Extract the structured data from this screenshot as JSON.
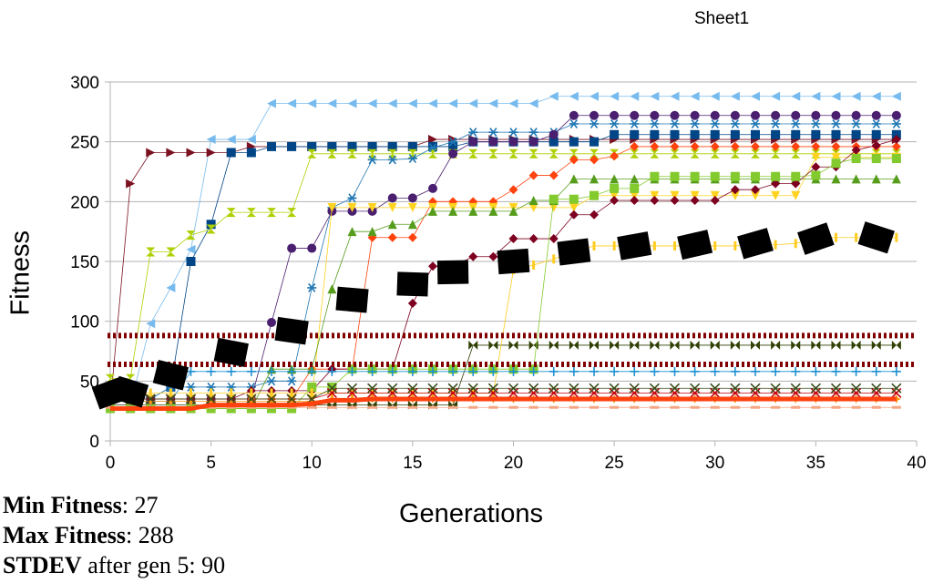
{
  "sheet_title": "Sheet1",
  "stats": [
    {
      "label": "Min Fitness",
      "sep": ": ",
      "value": "27"
    },
    {
      "label": "Max Fitness",
      "sep": ": ",
      "value": "288"
    },
    {
      "label": "STDEV",
      "sep": " after gen 5: ",
      "value": "90"
    }
  ],
  "chart_data": {
    "type": "line",
    "title": "",
    "xlabel": "Generations",
    "ylabel": "Fitness",
    "xlim": [
      0,
      40
    ],
    "ylim": [
      0,
      300
    ],
    "xticks": [
      0,
      5,
      10,
      15,
      20,
      25,
      30,
      35,
      40
    ],
    "yticks": [
      0,
      50,
      100,
      150,
      200,
      250,
      300
    ],
    "grid": "horizontal",
    "legend": "none",
    "x": [
      0,
      1,
      2,
      3,
      4,
      5,
      6,
      7,
      8,
      9,
      10,
      11,
      12,
      13,
      14,
      15,
      16,
      17,
      18,
      19,
      20,
      21,
      22,
      23,
      24,
      25,
      26,
      27,
      28,
      29,
      30,
      31,
      32,
      33,
      34,
      35,
      36,
      37,
      38,
      39
    ],
    "series": [
      {
        "color": "#77bbee",
        "marker": "triangle-left",
        "values": [
          30,
          30,
          98,
          128,
          160,
          252,
          252,
          252,
          282,
          282,
          282,
          282,
          282,
          282,
          282,
          282,
          282,
          282,
          282,
          282,
          282,
          282,
          288,
          288,
          288,
          288,
          288,
          288,
          288,
          288,
          288,
          288,
          288,
          288,
          288,
          288,
          288,
          288,
          288,
          288
        ]
      },
      {
        "color": "#7b1020",
        "marker": "triangle-right",
        "values": [
          30,
          215,
          241,
          241,
          241,
          241,
          241,
          246,
          246,
          246,
          246,
          246,
          246,
          246,
          246,
          246,
          252,
          252,
          252,
          252,
          252,
          252,
          252,
          252,
          252,
          252,
          252,
          252,
          252,
          252,
          252,
          252,
          252,
          252,
          252,
          252,
          252,
          252,
          252,
          252
        ]
      },
      {
        "color": "#004586",
        "marker": "square",
        "values": [
          35,
          35,
          35,
          45,
          150,
          181,
          241,
          241,
          246,
          246,
          246,
          246,
          246,
          246,
          246,
          246,
          246,
          246,
          250,
          250,
          250,
          250,
          250,
          250,
          250,
          256,
          256,
          256,
          256,
          256,
          256,
          256,
          256,
          256,
          256,
          256,
          256,
          256,
          256,
          256
        ]
      },
      {
        "color": "#aecf00",
        "marker": "hourglass",
        "values": [
          52,
          52,
          158,
          158,
          172,
          177,
          191,
          191,
          191,
          191,
          240,
          240,
          240,
          240,
          240,
          240,
          240,
          240,
          240,
          240,
          240,
          240,
          240,
          240,
          240,
          240,
          240,
          240,
          240,
          240,
          240,
          240,
          240,
          240,
          240,
          240,
          240,
          240,
          240,
          240
        ]
      },
      {
        "color": "#314004",
        "marker": "bowtie",
        "values": [
          30,
          30,
          30,
          30,
          30,
          30,
          30,
          30,
          30,
          30,
          30,
          30,
          30,
          30,
          30,
          30,
          30,
          30,
          80,
          80,
          80,
          80,
          80,
          80,
          80,
          80,
          80,
          80,
          80,
          80,
          80,
          80,
          80,
          80,
          80,
          80,
          80,
          80,
          80,
          80
        ]
      },
      {
        "color": "#1f77b4",
        "marker": "asterisk",
        "values": [
          35,
          35,
          35,
          45,
          45,
          45,
          45,
          45,
          50,
          50,
          128,
          195,
          203,
          235,
          235,
          236,
          245,
          250,
          258,
          258,
          258,
          258,
          258,
          265,
          265,
          265,
          265,
          265,
          265,
          265,
          265,
          265,
          265,
          265,
          265,
          265,
          265,
          265,
          265,
          265
        ]
      },
      {
        "color": "#4b1f6f",
        "marker": "circle",
        "values": [
          35,
          35,
          35,
          35,
          35,
          35,
          35,
          35,
          99,
          161,
          161,
          192,
          192,
          192,
          203,
          203,
          211,
          240,
          250,
          250,
          250,
          250,
          256,
          272,
          272,
          272,
          272,
          272,
          272,
          272,
          272,
          272,
          272,
          272,
          272,
          272,
          272,
          272,
          272,
          272
        ]
      },
      {
        "color": "#ff420e",
        "marker": "diamond",
        "values": [
          35,
          35,
          35,
          35,
          35,
          35,
          35,
          35,
          35,
          35,
          60,
          60,
          60,
          170,
          170,
          170,
          200,
          200,
          200,
          200,
          210,
          222,
          222,
          235,
          235,
          238,
          246,
          246,
          246,
          246,
          246,
          246,
          246,
          246,
          246,
          246,
          246,
          246,
          246,
          246
        ]
      },
      {
        "color": "#ffd320",
        "marker": "triangle-down",
        "values": [
          35,
          35,
          35,
          35,
          35,
          35,
          35,
          35,
          35,
          35,
          35,
          195,
          195,
          195,
          195,
          195,
          195,
          195,
          195,
          195,
          195,
          195,
          195,
          195,
          205,
          205,
          205,
          205,
          205,
          205,
          205,
          205,
          205,
          205,
          205,
          237,
          237,
          237,
          237,
          237
        ]
      },
      {
        "color": "#579d1c",
        "marker": "triangle-up",
        "values": [
          27,
          27,
          27,
          27,
          27,
          27,
          27,
          27,
          60,
          60,
          60,
          127,
          175,
          175,
          181,
          181,
          192,
          192,
          192,
          192,
          192,
          201,
          201,
          219,
          219,
          219,
          219,
          219,
          219,
          219,
          219,
          219,
          219,
          219,
          219,
          219,
          219,
          219,
          219,
          219
        ]
      },
      {
        "color": "#7e0021",
        "marker": "diamond",
        "values": [
          35,
          35,
          35,
          35,
          35,
          35,
          35,
          42,
          42,
          42,
          42,
          60,
          60,
          60,
          60,
          115,
          146,
          146,
          154,
          154,
          169,
          169,
          169,
          189,
          189,
          201,
          201,
          201,
          201,
          201,
          201,
          210,
          210,
          215,
          215,
          229,
          229,
          243,
          247,
          252
        ]
      },
      {
        "color": "#83ca2e",
        "marker": "square",
        "values": [
          27,
          27,
          27,
          27,
          27,
          27,
          27,
          27,
          27,
          27,
          45,
          45,
          60,
          60,
          60,
          60,
          60,
          60,
          60,
          60,
          60,
          60,
          202,
          202,
          205,
          211,
          211,
          221,
          221,
          221,
          221,
          221,
          221,
          221,
          221,
          222,
          232,
          236,
          236,
          236
        ]
      },
      {
        "color": "#ffcc22",
        "marker": "bar",
        "values": [
          40,
          40,
          40,
          40,
          40,
          40,
          40,
          40,
          40,
          40,
          40,
          40,
          40,
          40,
          40,
          40,
          40,
          40,
          40,
          40,
          143,
          147,
          152,
          158,
          163,
          163,
          163,
          163,
          163,
          163,
          163,
          163,
          164,
          164,
          165,
          170,
          170,
          170,
          170,
          170
        ]
      },
      {
        "color": "#1e90d0",
        "marker": "plus",
        "values": [
          33,
          33,
          33,
          33,
          58,
          58,
          58,
          58,
          58,
          58,
          58,
          58,
          58,
          58,
          58,
          58,
          58,
          58,
          58,
          58,
          58,
          58,
          58,
          58,
          58,
          58,
          58,
          58,
          58,
          58,
          58,
          58,
          58,
          58,
          58,
          58,
          58,
          58,
          58,
          58
        ]
      },
      {
        "color": "#c5000b",
        "marker": "x",
        "values": [
          35,
          35,
          35,
          35,
          35,
          35,
          35,
          35,
          35,
          35,
          35,
          40,
          40,
          40,
          40,
          40,
          40,
          40,
          40,
          40,
          40,
          40,
          40,
          40,
          40,
          40,
          40,
          40,
          40,
          40,
          40,
          40,
          40,
          40,
          40,
          40,
          40,
          40,
          40,
          40
        ]
      },
      {
        "color": "#ff950e",
        "marker": "star",
        "values": [
          33,
          33,
          33,
          33,
          33,
          33,
          33,
          33,
          33,
          33,
          33,
          35,
          35,
          35,
          35,
          35,
          35,
          35,
          35,
          35,
          35,
          35,
          35,
          35,
          35,
          35,
          35,
          35,
          35,
          35,
          35,
          35,
          35,
          35,
          35,
          35,
          35,
          35,
          35,
          35
        ]
      },
      {
        "color": "#3a4c1a",
        "marker": "x",
        "values": [
          35,
          35,
          35,
          35,
          35,
          35,
          35,
          35,
          35,
          35,
          35,
          44,
          44,
          44,
          44,
          44,
          44,
          44,
          44,
          44,
          44,
          44,
          44,
          44,
          44,
          44,
          44,
          44,
          44,
          44,
          44,
          44,
          44,
          44,
          44,
          44,
          44,
          44,
          44,
          44
        ]
      },
      {
        "color": "#f4a582",
        "marker": "dash",
        "values": [
          28,
          28,
          28,
          28,
          28,
          28,
          28,
          28,
          28,
          28,
          28,
          28,
          28,
          28,
          28,
          28,
          28,
          28,
          28,
          28,
          28,
          28,
          28,
          28,
          28,
          28,
          28,
          28,
          28,
          28,
          28,
          28,
          28,
          28,
          28,
          28,
          28,
          28,
          28,
          28
        ]
      }
    ],
    "min_line": {
      "color": "#ff420e",
      "values": [
        27,
        27,
        27,
        27,
        27,
        30,
        30,
        30,
        30,
        30,
        31,
        34,
        34,
        35,
        35,
        35,
        35,
        35,
        35,
        35,
        35,
        35,
        35,
        35,
        35,
        35,
        35,
        35,
        35,
        35,
        35,
        35,
        35,
        35,
        35,
        35,
        35,
        35,
        35,
        35
      ]
    },
    "mean_line": {
      "color": "#000000",
      "x": [
        0,
        1,
        3,
        6,
        9,
        12,
        15,
        17,
        20,
        23,
        26,
        29,
        32,
        35,
        38
      ],
      "values": [
        40,
        41,
        55,
        74,
        92,
        118,
        131,
        141,
        150,
        158,
        163,
        164,
        165,
        169,
        170
      ]
    },
    "stdev_bands": {
      "color": "#800000",
      "values": [
        88,
        64
      ]
    }
  }
}
